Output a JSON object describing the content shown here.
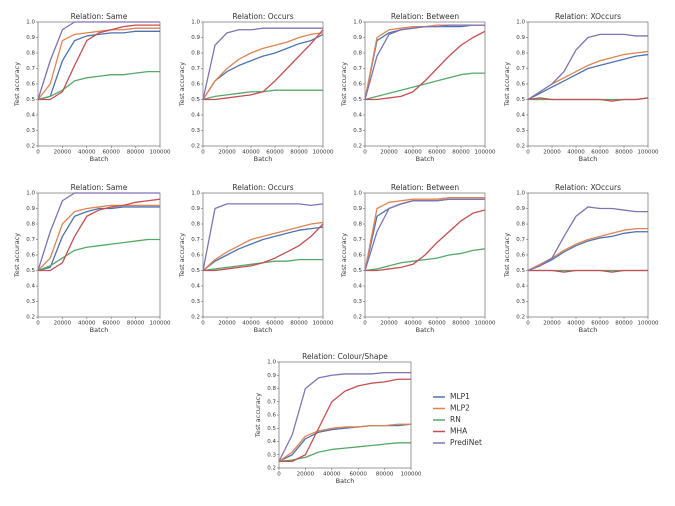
{
  "chart_data": [
    {
      "type": "line",
      "title": "Relation: Same",
      "xlabel": "Batch",
      "ylabel": "Test accuracy",
      "x": [
        0,
        10000,
        20000,
        30000,
        40000,
        50000,
        60000,
        70000,
        80000,
        90000,
        100000
      ],
      "xlim": [
        0,
        100000
      ],
      "xticks": [
        0,
        20000,
        40000,
        60000,
        80000,
        100000
      ],
      "ylim": [
        0.2,
        1
      ],
      "yticks": [
        0.2,
        0.3,
        0.4,
        0.5,
        0.6,
        0.7,
        0.8,
        0.9,
        {
          "value": 1,
          "label": "1.0"
        }
      ],
      "series": [
        {
          "color": "#4c72b0",
          "values": [
            0.5,
            0.52,
            0.75,
            0.88,
            0.91,
            0.92,
            0.93,
            0.93,
            0.94,
            0.94,
            0.94
          ]
        },
        {
          "color": "#dd8452",
          "values": [
            0.5,
            0.6,
            0.88,
            0.92,
            0.93,
            0.94,
            0.95,
            0.95,
            0.96,
            0.96,
            0.96
          ]
        },
        {
          "color": "#55a868",
          "values": [
            0.5,
            0.52,
            0.56,
            0.62,
            0.64,
            0.65,
            0.66,
            0.66,
            0.67,
            0.68,
            0.68
          ]
        },
        {
          "color": "#c44e52",
          "values": [
            0.5,
            0.5,
            0.55,
            0.72,
            0.88,
            0.93,
            0.95,
            0.97,
            0.98,
            0.98,
            0.98
          ]
        },
        {
          "color": "#8172b2",
          "values": [
            0.5,
            0.75,
            0.95,
            1.0,
            1.0,
            1.0,
            1.0,
            1.0,
            1.0,
            1.0,
            1.0
          ]
        }
      ]
    },
    {
      "type": "line",
      "title": "Relation: Occurs",
      "xlabel": "Batch",
      "ylabel": "Test accuracy",
      "x": [
        0,
        10000,
        20000,
        30000,
        40000,
        50000,
        60000,
        70000,
        80000,
        90000,
        100000
      ],
      "xlim": [
        0,
        100000
      ],
      "xticks": [
        0,
        20000,
        40000,
        60000,
        80000,
        100000
      ],
      "ylim": [
        0.2,
        1
      ],
      "yticks": [
        0.2,
        0.3,
        0.4,
        0.5,
        0.6,
        0.7,
        0.8,
        0.9,
        {
          "value": 1,
          "label": "1.0"
        }
      ],
      "series": [
        {
          "color": "#4c72b0",
          "values": [
            0.5,
            0.62,
            0.68,
            0.72,
            0.75,
            0.78,
            0.8,
            0.83,
            0.86,
            0.88,
            0.92
          ]
        },
        {
          "color": "#dd8452",
          "values": [
            0.5,
            0.62,
            0.7,
            0.76,
            0.8,
            0.83,
            0.85,
            0.87,
            0.9,
            0.92,
            0.93
          ]
        },
        {
          "color": "#55a868",
          "values": [
            0.5,
            0.52,
            0.53,
            0.54,
            0.55,
            0.55,
            0.56,
            0.56,
            0.56,
            0.56,
            0.56
          ]
        },
        {
          "color": "#c44e52",
          "values": [
            0.5,
            0.5,
            0.51,
            0.52,
            0.53,
            0.55,
            0.62,
            0.7,
            0.78,
            0.86,
            0.95
          ]
        },
        {
          "color": "#8172b2",
          "values": [
            0.5,
            0.85,
            0.93,
            0.95,
            0.95,
            0.96,
            0.96,
            0.96,
            0.96,
            0.96,
            0.96
          ]
        }
      ]
    },
    {
      "type": "line",
      "title": "Relation: Between",
      "xlabel": "Batch",
      "ylabel": "Test accuracy",
      "x": [
        0,
        10000,
        20000,
        30000,
        40000,
        50000,
        60000,
        70000,
        80000,
        90000,
        100000
      ],
      "xlim": [
        0,
        100000
      ],
      "xticks": [
        0,
        20000,
        40000,
        60000,
        80000,
        100000
      ],
      "ylim": [
        0.2,
        1
      ],
      "yticks": [
        0.2,
        0.3,
        0.4,
        0.5,
        0.6,
        0.7,
        0.8,
        0.9,
        {
          "value": 1,
          "label": "1.0"
        }
      ],
      "series": [
        {
          "color": "#4c72b0",
          "values": [
            0.5,
            0.88,
            0.93,
            0.95,
            0.96,
            0.97,
            0.97,
            0.97,
            0.97,
            0.98,
            0.98
          ]
        },
        {
          "color": "#dd8452",
          "values": [
            0.5,
            0.9,
            0.95,
            0.96,
            0.97,
            0.97,
            0.98,
            0.98,
            0.98,
            0.98,
            0.98
          ]
        },
        {
          "color": "#55a868",
          "values": [
            0.5,
            0.52,
            0.54,
            0.56,
            0.58,
            0.6,
            0.62,
            0.64,
            0.66,
            0.67,
            0.67
          ]
        },
        {
          "color": "#c44e52",
          "values": [
            0.5,
            0.5,
            0.51,
            0.52,
            0.55,
            0.62,
            0.7,
            0.78,
            0.85,
            0.9,
            0.94
          ]
        },
        {
          "color": "#8172b2",
          "values": [
            0.5,
            0.78,
            0.92,
            0.95,
            0.96,
            0.97,
            0.97,
            0.98,
            0.98,
            0.98,
            0.98
          ]
        }
      ]
    },
    {
      "type": "line",
      "title": "Relation: XOccurs",
      "xlabel": "Batch",
      "ylabel": "Test accuracy",
      "x": [
        0,
        10000,
        20000,
        30000,
        40000,
        50000,
        60000,
        70000,
        80000,
        90000,
        100000
      ],
      "xlim": [
        0,
        100000
      ],
      "xticks": [
        0,
        20000,
        40000,
        60000,
        80000,
        100000
      ],
      "ylim": [
        0.2,
        1
      ],
      "yticks": [
        0.2,
        0.3,
        0.4,
        0.5,
        0.6,
        0.7,
        0.8,
        0.9,
        {
          "value": 1,
          "label": "1.0"
        }
      ],
      "series": [
        {
          "color": "#4c72b0",
          "values": [
            0.5,
            0.54,
            0.58,
            0.62,
            0.66,
            0.7,
            0.72,
            0.74,
            0.76,
            0.78,
            0.79
          ]
        },
        {
          "color": "#dd8452",
          "values": [
            0.5,
            0.55,
            0.6,
            0.64,
            0.68,
            0.72,
            0.75,
            0.77,
            0.79,
            0.8,
            0.81
          ]
        },
        {
          "color": "#55a868",
          "values": [
            0.5,
            0.5,
            0.5,
            0.5,
            0.5,
            0.5,
            0.5,
            0.5,
            0.5,
            0.5,
            0.51
          ]
        },
        {
          "color": "#c44e52",
          "values": [
            0.5,
            0.51,
            0.5,
            0.5,
            0.5,
            0.5,
            0.5,
            0.49,
            0.5,
            0.5,
            0.51
          ]
        },
        {
          "color": "#8172b2",
          "values": [
            0.5,
            0.55,
            0.6,
            0.68,
            0.82,
            0.9,
            0.92,
            0.92,
            0.92,
            0.91,
            0.91
          ]
        }
      ]
    },
    {
      "type": "line",
      "title": "Relation: Same",
      "xlabel": "Batch",
      "ylabel": "Test accuracy",
      "x": [
        0,
        10000,
        20000,
        30000,
        40000,
        50000,
        60000,
        70000,
        80000,
        90000,
        100000
      ],
      "xlim": [
        0,
        100000
      ],
      "xticks": [
        0,
        20000,
        40000,
        60000,
        80000,
        100000
      ],
      "ylim": [
        0.2,
        1
      ],
      "yticks": [
        0.2,
        0.3,
        0.4,
        0.5,
        0.6,
        0.7,
        0.8,
        0.9,
        {
          "value": 1,
          "label": "1.0"
        }
      ],
      "series": [
        {
          "color": "#4c72b0",
          "values": [
            0.5,
            0.52,
            0.72,
            0.85,
            0.88,
            0.9,
            0.9,
            0.91,
            0.91,
            0.91,
            0.91
          ]
        },
        {
          "color": "#dd8452",
          "values": [
            0.5,
            0.58,
            0.8,
            0.88,
            0.9,
            0.91,
            0.92,
            0.92,
            0.92,
            0.92,
            0.92
          ]
        },
        {
          "color": "#55a868",
          "values": [
            0.5,
            0.53,
            0.58,
            0.63,
            0.65,
            0.66,
            0.67,
            0.68,
            0.69,
            0.7,
            0.7
          ]
        },
        {
          "color": "#c44e52",
          "values": [
            0.5,
            0.5,
            0.55,
            0.72,
            0.85,
            0.89,
            0.91,
            0.92,
            0.94,
            0.95,
            0.96
          ]
        },
        {
          "color": "#8172b2",
          "values": [
            0.5,
            0.75,
            0.95,
            1.0,
            1.0,
            1.0,
            1.0,
            1.0,
            1.0,
            1.0,
            1.0
          ]
        }
      ]
    },
    {
      "type": "line",
      "title": "Relation: Occurs",
      "xlabel": "Batch",
      "ylabel": "Test accuracy",
      "x": [
        0,
        10000,
        20000,
        30000,
        40000,
        50000,
        60000,
        70000,
        80000,
        90000,
        100000
      ],
      "xlim": [
        0,
        100000
      ],
      "xticks": [
        0,
        20000,
        40000,
        60000,
        80000,
        100000
      ],
      "ylim": [
        0.2,
        1
      ],
      "yticks": [
        0.2,
        0.3,
        0.4,
        0.5,
        0.6,
        0.7,
        0.8,
        0.9,
        {
          "value": 1,
          "label": "1.0"
        }
      ],
      "series": [
        {
          "color": "#4c72b0",
          "values": [
            0.5,
            0.56,
            0.6,
            0.64,
            0.67,
            0.7,
            0.72,
            0.74,
            0.76,
            0.77,
            0.78
          ]
        },
        {
          "color": "#dd8452",
          "values": [
            0.5,
            0.57,
            0.62,
            0.66,
            0.7,
            0.72,
            0.74,
            0.76,
            0.78,
            0.8,
            0.81
          ]
        },
        {
          "color": "#55a868",
          "values": [
            0.5,
            0.51,
            0.52,
            0.53,
            0.54,
            0.55,
            0.56,
            0.56,
            0.57,
            0.57,
            0.57
          ]
        },
        {
          "color": "#c44e52",
          "values": [
            0.5,
            0.5,
            0.51,
            0.52,
            0.53,
            0.55,
            0.58,
            0.62,
            0.66,
            0.72,
            0.8
          ]
        },
        {
          "color": "#8172b2",
          "values": [
            0.5,
            0.9,
            0.93,
            0.93,
            0.93,
            0.93,
            0.93,
            0.93,
            0.93,
            0.92,
            0.93
          ]
        }
      ]
    },
    {
      "type": "line",
      "title": "Relation: Between",
      "xlabel": "Batch",
      "ylabel": "Test accuracy",
      "x": [
        0,
        10000,
        20000,
        30000,
        40000,
        50000,
        60000,
        70000,
        80000,
        90000,
        100000
      ],
      "xlim": [
        0,
        100000
      ],
      "xticks": [
        0,
        20000,
        40000,
        60000,
        80000,
        100000
      ],
      "ylim": [
        0.2,
        1
      ],
      "yticks": [
        0.2,
        0.3,
        0.4,
        0.5,
        0.6,
        0.7,
        0.8,
        0.9,
        {
          "value": 1,
          "label": "1.0"
        }
      ],
      "series": [
        {
          "color": "#4c72b0",
          "values": [
            0.5,
            0.85,
            0.9,
            0.93,
            0.95,
            0.95,
            0.95,
            0.96,
            0.96,
            0.96,
            0.96
          ]
        },
        {
          "color": "#dd8452",
          "values": [
            0.5,
            0.9,
            0.94,
            0.95,
            0.96,
            0.96,
            0.96,
            0.97,
            0.97,
            0.97,
            0.97
          ]
        },
        {
          "color": "#55a868",
          "values": [
            0.5,
            0.51,
            0.53,
            0.55,
            0.56,
            0.57,
            0.58,
            0.6,
            0.61,
            0.63,
            0.64
          ]
        },
        {
          "color": "#c44e52",
          "values": [
            0.5,
            0.5,
            0.51,
            0.52,
            0.54,
            0.6,
            0.68,
            0.75,
            0.82,
            0.87,
            0.89
          ]
        },
        {
          "color": "#8172b2",
          "values": [
            0.5,
            0.75,
            0.9,
            0.93,
            0.95,
            0.95,
            0.95,
            0.96,
            0.96,
            0.96,
            0.96
          ]
        }
      ]
    },
    {
      "type": "line",
      "title": "Relation: XOccurs",
      "xlabel": "Batch",
      "ylabel": "Test accuracy",
      "x": [
        0,
        10000,
        20000,
        30000,
        40000,
        50000,
        60000,
        70000,
        80000,
        90000,
        100000
      ],
      "xlim": [
        0,
        100000
      ],
      "xticks": [
        0,
        20000,
        40000,
        60000,
        80000,
        100000
      ],
      "ylim": [
        0.2,
        1
      ],
      "yticks": [
        0.2,
        0.3,
        0.4,
        0.5,
        0.6,
        0.7,
        0.8,
        0.9,
        {
          "value": 1,
          "label": "1.0"
        }
      ],
      "series": [
        {
          "color": "#4c72b0",
          "values": [
            0.5,
            0.53,
            0.57,
            0.62,
            0.66,
            0.69,
            0.71,
            0.72,
            0.74,
            0.75,
            0.75
          ]
        },
        {
          "color": "#dd8452",
          "values": [
            0.5,
            0.54,
            0.58,
            0.63,
            0.67,
            0.7,
            0.72,
            0.74,
            0.76,
            0.77,
            0.77
          ]
        },
        {
          "color": "#55a868",
          "values": [
            0.5,
            0.5,
            0.5,
            0.5,
            0.5,
            0.5,
            0.5,
            0.5,
            0.5,
            0.5,
            0.5
          ]
        },
        {
          "color": "#c44e52",
          "values": [
            0.5,
            0.5,
            0.5,
            0.49,
            0.5,
            0.5,
            0.5,
            0.49,
            0.5,
            0.5,
            0.5
          ]
        },
        {
          "color": "#8172b2",
          "values": [
            0.5,
            0.53,
            0.58,
            0.72,
            0.85,
            0.91,
            0.9,
            0.9,
            0.89,
            0.88,
            0.88
          ]
        }
      ]
    },
    {
      "type": "line",
      "title": "Relation: Colour/Shape",
      "xlabel": "Batch",
      "ylabel": "Test accuracy",
      "x": [
        0,
        10000,
        20000,
        30000,
        40000,
        50000,
        60000,
        70000,
        80000,
        90000,
        100000
      ],
      "xlim": [
        0,
        100000
      ],
      "xticks": [
        0,
        20000,
        40000,
        60000,
        80000,
        100000
      ],
      "ylim": [
        0.2,
        1
      ],
      "yticks": [
        0.2,
        0.3,
        0.4,
        0.5,
        0.6,
        0.7,
        0.8,
        0.9,
        {
          "value": 1,
          "label": "1.0"
        }
      ],
      "legend": "right",
      "series": [
        {
          "name": "MLP1",
          "color": "#4c72b0",
          "values": [
            0.25,
            0.3,
            0.42,
            0.47,
            0.49,
            0.5,
            0.51,
            0.52,
            0.52,
            0.52,
            0.53
          ]
        },
        {
          "name": "MLP2",
          "color": "#dd8452",
          "values": [
            0.25,
            0.32,
            0.44,
            0.48,
            0.5,
            0.51,
            0.51,
            0.52,
            0.52,
            0.53,
            0.53
          ]
        },
        {
          "name": "RN",
          "color": "#55a868",
          "values": [
            0.25,
            0.26,
            0.28,
            0.32,
            0.34,
            0.35,
            0.36,
            0.37,
            0.38,
            0.39,
            0.39
          ]
        },
        {
          "name": "MHA",
          "color": "#c44e52",
          "values": [
            0.25,
            0.25,
            0.3,
            0.5,
            0.7,
            0.78,
            0.82,
            0.84,
            0.85,
            0.87,
            0.87
          ]
        },
        {
          "name": "PrediNet",
          "color": "#8172b2",
          "values": [
            0.25,
            0.45,
            0.8,
            0.88,
            0.9,
            0.91,
            0.91,
            0.91,
            0.92,
            0.92,
            0.92
          ]
        }
      ]
    }
  ]
}
